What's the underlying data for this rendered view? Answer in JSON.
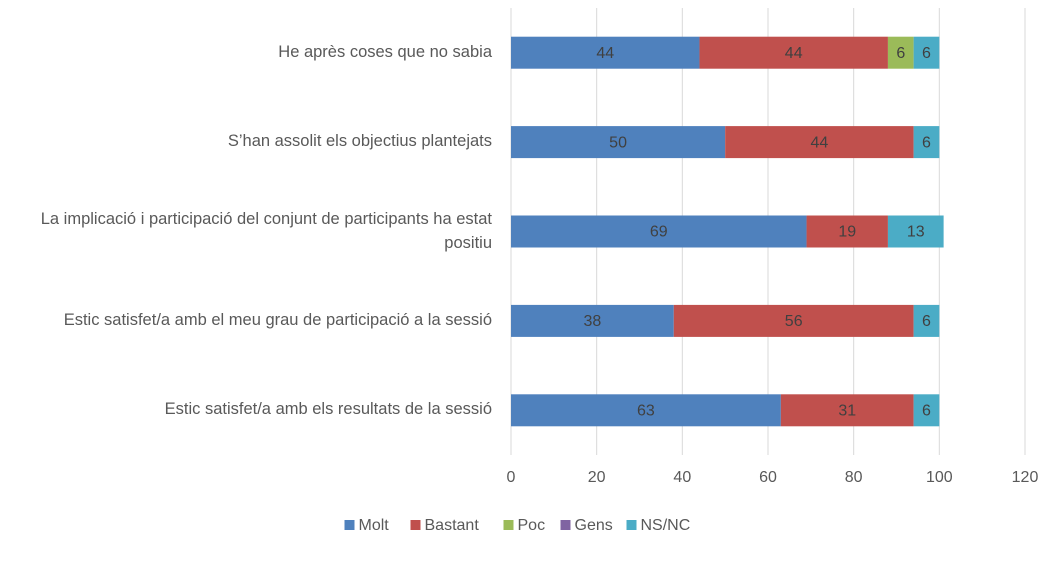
{
  "chart_data": {
    "type": "stacked-bar-horizontal",
    "categories": [
      "He après coses que no sabia",
      "S’han assolit els objectius plantejats",
      "La implicació i participació del conjunt de participants ha estat positiu",
      "Estic satisfet/a amb el meu grau de participació a la sessió",
      "Estic satisfet/a amb els resultats de la sessió"
    ],
    "series": [
      {
        "name": "Molt",
        "color": "#4f81bd",
        "values": [
          44,
          50,
          69,
          38,
          63
        ]
      },
      {
        "name": "Bastant",
        "color": "#c0504d",
        "values": [
          44,
          44,
          19,
          56,
          31
        ]
      },
      {
        "name": "Poc",
        "color": "#9bbb59",
        "values": [
          6,
          null,
          null,
          null,
          null
        ]
      },
      {
        "name": "Gens",
        "color": "#8064a2",
        "values": [
          null,
          null,
          null,
          null,
          null
        ]
      },
      {
        "name": "NS/NC",
        "color": "#4bacc6",
        "values": [
          6,
          6,
          13,
          6,
          6
        ]
      }
    ],
    "xlim": [
      0,
      120
    ],
    "xticks": [
      0,
      20,
      40,
      60,
      80,
      100,
      120
    ],
    "grid": true,
    "legend": "bottom"
  }
}
